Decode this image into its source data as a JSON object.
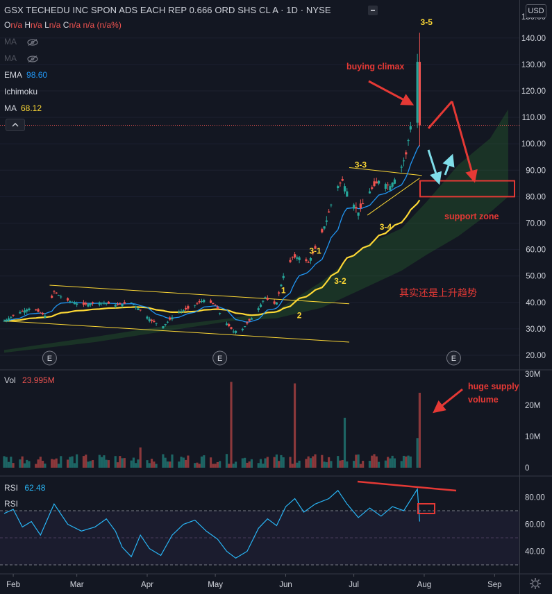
{
  "header": {
    "title": "GSX TECHEDU INC SPON ADS EACH REP 0.666 ORD SHS CL A · 1D · NYSE",
    "ohlc": [
      {
        "k": "O",
        "v": "n/a"
      },
      {
        "k": "H",
        "v": "n/a"
      },
      {
        "k": "L",
        "v": "n/a"
      },
      {
        "k": "C",
        "v": "n/a n/a (n/a%)"
      }
    ],
    "currency": "USD"
  },
  "indicators": [
    {
      "name": "MA",
      "value": "",
      "hidden": true
    },
    {
      "name": "MA",
      "value": "",
      "hidden": true
    },
    {
      "name": "EMA",
      "value": "98.60",
      "color": "#2196f3"
    },
    {
      "name": "Ichimoku",
      "value": ""
    },
    {
      "name": "MA",
      "value": "68.12",
      "color": "#fdd835"
    }
  ],
  "colors": {
    "up": "#26a69a",
    "down": "#ef5350",
    "ema": "#2196f3",
    "ma": "#fdd835",
    "rsi": "#29b6f6",
    "annotation": "#e53935",
    "arrow_cyan": "#80deea",
    "wave_label": "#fdd835"
  },
  "chart_data": [
    {
      "type": "candlestick",
      "title": "GSX TECHEDU INC SPON ADS EACH REP 0.666 ORD SHS CL A · 1D · NYSE",
      "x_ticks": [
        "Feb",
        "Mar",
        "Apr",
        "May",
        "Jun",
        "Jul",
        "Aug",
        "Sep"
      ],
      "y_ticks": [
        20,
        30,
        40,
        50,
        60,
        70,
        80,
        90,
        100,
        110,
        120,
        130,
        140
      ],
      "y_range": [
        16,
        150
      ],
      "price_line": 107,
      "close_path": [
        {
          "d": 0,
          "c": 33
        },
        {
          "d": 6,
          "c": 36
        },
        {
          "d": 12,
          "c": 38
        },
        {
          "d": 18,
          "c": 35
        },
        {
          "d": 22,
          "c": 44
        },
        {
          "d": 27,
          "c": 41
        },
        {
          "d": 34,
          "c": 39
        },
        {
          "d": 42,
          "c": 40
        },
        {
          "d": 50,
          "c": 39
        },
        {
          "d": 56,
          "c": 40
        },
        {
          "d": 60,
          "c": 37
        },
        {
          "d": 65,
          "c": 33
        },
        {
          "d": 70,
          "c": 31
        },
        {
          "d": 76,
          "c": 36
        },
        {
          "d": 82,
          "c": 38
        },
        {
          "d": 88,
          "c": 41
        },
        {
          "d": 93,
          "c": 39
        },
        {
          "d": 97,
          "c": 33
        },
        {
          "d": 101,
          "c": 29
        },
        {
          "d": 105,
          "c": 30
        },
        {
          "d": 110,
          "c": 35
        },
        {
          "d": 115,
          "c": 42
        },
        {
          "d": 118,
          "c": 39
        },
        {
          "d": 120,
          "c": 40
        },
        {
          "d": 123,
          "c": 50
        },
        {
          "d": 127,
          "c": 57
        },
        {
          "d": 131,
          "c": 57
        },
        {
          "d": 134,
          "c": 55
        },
        {
          "d": 138,
          "c": 62
        },
        {
          "d": 142,
          "c": 71
        },
        {
          "d": 146,
          "c": 83
        },
        {
          "d": 149,
          "c": 86
        },
        {
          "d": 152,
          "c": 80
        },
        {
          "d": 156,
          "c": 74
        },
        {
          "d": 161,
          "c": 82
        },
        {
          "d": 165,
          "c": 86
        },
        {
          "d": 170,
          "c": 84
        },
        {
          "d": 174,
          "c": 89
        },
        {
          "d": 177,
          "c": 96
        },
        {
          "d": 180,
          "c": 112
        },
        {
          "d": 182,
          "c": 131
        },
        {
          "d": 183,
          "c": 107
        }
      ],
      "volume": {
        "y_ticks": [
          "0",
          "10M",
          "20M",
          "30M"
        ],
        "y_range": [
          0,
          30
        ],
        "last": "23.995M",
        "spikes_M": [
          {
            "d": 54,
            "v": 12.5
          },
          {
            "d": 60,
            "v": 6.5
          },
          {
            "d": 100,
            "v": 27.5
          },
          {
            "d": 104,
            "v": 10.5
          },
          {
            "d": 128,
            "v": 27
          },
          {
            "d": 150,
            "v": 16
          },
          {
            "d": 182,
            "v": 9.5
          },
          {
            "d": 183,
            "v": 24
          }
        ]
      },
      "rsi": {
        "name": "RSI",
        "value": "62.48",
        "y_ticks": [
          "40.00",
          "60.00",
          "80.00"
        ],
        "y_range": [
          26,
          94
        ],
        "bands": [
          70,
          50,
          30
        ],
        "path": [
          {
            "d": 0,
            "v": 68
          },
          {
            "d": 4,
            "v": 71
          },
          {
            "d": 8,
            "v": 58
          },
          {
            "d": 12,
            "v": 62
          },
          {
            "d": 16,
            "v": 52
          },
          {
            "d": 22,
            "v": 75
          },
          {
            "d": 28,
            "v": 60
          },
          {
            "d": 34,
            "v": 55
          },
          {
            "d": 40,
            "v": 58
          },
          {
            "d": 45,
            "v": 64
          },
          {
            "d": 49,
            "v": 55
          },
          {
            "d": 52,
            "v": 43
          },
          {
            "d": 56,
            "v": 36
          },
          {
            "d": 60,
            "v": 52
          },
          {
            "d": 64,
            "v": 42
          },
          {
            "d": 69,
            "v": 37
          },
          {
            "d": 74,
            "v": 52
          },
          {
            "d": 79,
            "v": 60
          },
          {
            "d": 84,
            "v": 63
          },
          {
            "d": 89,
            "v": 55
          },
          {
            "d": 94,
            "v": 49
          },
          {
            "d": 98,
            "v": 40
          },
          {
            "d": 102,
            "v": 35
          },
          {
            "d": 107,
            "v": 40
          },
          {
            "d": 112,
            "v": 57
          },
          {
            "d": 116,
            "v": 64
          },
          {
            "d": 120,
            "v": 59
          },
          {
            "d": 124,
            "v": 73
          },
          {
            "d": 128,
            "v": 79
          },
          {
            "d": 132,
            "v": 69
          },
          {
            "d": 137,
            "v": 75
          },
          {
            "d": 143,
            "v": 79
          },
          {
            "d": 147,
            "v": 85
          },
          {
            "d": 151,
            "v": 75
          },
          {
            "d": 156,
            "v": 65
          },
          {
            "d": 161,
            "v": 72
          },
          {
            "d": 166,
            "v": 66
          },
          {
            "d": 171,
            "v": 73
          },
          {
            "d": 176,
            "v": 70
          },
          {
            "d": 179,
            "v": 78
          },
          {
            "d": 182,
            "v": 86
          },
          {
            "d": 183,
            "v": 62
          }
        ]
      },
      "annotations": {
        "wave_labels": [
          "1",
          "2",
          "3-1",
          "3-2",
          "3-3",
          "3-4",
          "3-5"
        ],
        "buying_climax": "buying climax",
        "support_zone": "support zone",
        "support_range": [
          80,
          86
        ],
        "trend_note": "其实还是上升趋势",
        "huge_supply": [
          "huge supply",
          "volume"
        ],
        "earnings_marker": "E"
      }
    }
  ]
}
